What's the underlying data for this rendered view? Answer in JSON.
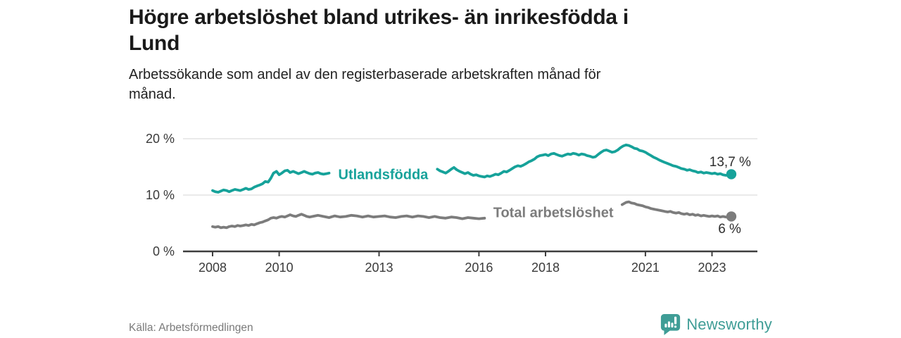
{
  "header": {
    "title_lines": [
      "Högre arbetslöshet bland utrikes- än inrikesfödda i",
      "Lund"
    ],
    "subtitle_lines": [
      "Arbetssökande som andel av den registerbaserade arbetskraften månad för",
      "månad."
    ]
  },
  "footer": {
    "source": "Källa: Arbetsförmedlingen",
    "brand_name": "Newsworthy",
    "brand_color": "#3f9d96",
    "logo_icon": "bar-chart-speech-bubble-icon"
  },
  "chart_data": {
    "type": "line",
    "title": "Högre arbetslöshet bland utrikes- än inrikesfödda i Lund",
    "subtitle": "Arbetssökande som andel av den registerbaserade arbetskraften månad för månad.",
    "unit": "%",
    "grid": "horizontal-only",
    "grid_color": "#e3e3e3",
    "axis_color": "#3e3e3e",
    "x_range": [
      2007.1,
      2024.4
    ],
    "y_range": [
      0,
      21.5
    ],
    "x_tick_values": [
      2008,
      2010,
      2013,
      2016,
      2018,
      2021,
      2023
    ],
    "x_tick_labels": [
      "2008",
      "2010",
      "2013",
      "2016",
      "2018",
      "2021",
      "2023"
    ],
    "y_ticks": [
      {
        "value": 0,
        "label": "0 %"
      },
      {
        "value": 10,
        "label": "10 %"
      },
      {
        "value": 20,
        "label": "20 %"
      }
    ],
    "series": [
      {
        "name": "Utlandsfödda",
        "color": "#16a29a",
        "end_value": 13.7,
        "end_label": "13,7 %",
        "segments": [
          [
            [
              2008,
              10.8
            ],
            [
              2008.08,
              10.6
            ],
            [
              2008.17,
              10.5
            ],
            [
              2008.25,
              10.7
            ],
            [
              2008.33,
              10.9
            ],
            [
              2008.42,
              10.8
            ],
            [
              2008.5,
              10.6
            ],
            [
              2008.58,
              10.8
            ],
            [
              2008.67,
              11.0
            ],
            [
              2008.75,
              10.9
            ],
            [
              2008.83,
              10.8
            ],
            [
              2008.92,
              11.0
            ],
            [
              2009,
              11.2
            ],
            [
              2009.08,
              11.0
            ],
            [
              2009.17,
              11.1
            ],
            [
              2009.25,
              11.4
            ],
            [
              2009.33,
              11.6
            ],
            [
              2009.42,
              11.8
            ],
            [
              2009.5,
              12.0
            ],
            [
              2009.58,
              12.4
            ],
            [
              2009.67,
              12.3
            ],
            [
              2009.75,
              13.0
            ],
            [
              2009.83,
              13.9
            ],
            [
              2009.92,
              14.2
            ],
            [
              2010,
              13.6
            ],
            [
              2010.08,
              13.9
            ],
            [
              2010.17,
              14.3
            ],
            [
              2010.25,
              14.4
            ],
            [
              2010.33,
              14.0
            ],
            [
              2010.42,
              14.2
            ],
            [
              2010.5,
              14.0
            ],
            [
              2010.58,
              13.8
            ],
            [
              2010.67,
              14.0
            ],
            [
              2010.75,
              14.2
            ],
            [
              2010.83,
              14.0
            ],
            [
              2010.92,
              13.8
            ],
            [
              2011,
              13.7
            ],
            [
              2011.08,
              13.9
            ],
            [
              2011.17,
              14.0
            ],
            [
              2011.25,
              13.8
            ],
            [
              2011.33,
              13.7
            ],
            [
              2011.42,
              13.8
            ],
            [
              2011.5,
              13.9
            ]
          ],
          [
            [
              2014.75,
              14.6
            ],
            [
              2014.83,
              14.3
            ],
            [
              2014.92,
              14.1
            ],
            [
              2015,
              13.9
            ],
            [
              2015.08,
              14.2
            ],
            [
              2015.17,
              14.6
            ],
            [
              2015.25,
              14.9
            ],
            [
              2015.33,
              14.5
            ],
            [
              2015.42,
              14.2
            ],
            [
              2015.5,
              14.0
            ],
            [
              2015.58,
              13.8
            ],
            [
              2015.67,
              14.0
            ],
            [
              2015.75,
              13.7
            ],
            [
              2015.83,
              13.5
            ],
            [
              2015.92,
              13.6
            ],
            [
              2016,
              13.4
            ],
            [
              2016.08,
              13.3
            ],
            [
              2016.17,
              13.2
            ],
            [
              2016.25,
              13.4
            ],
            [
              2016.33,
              13.3
            ],
            [
              2016.42,
              13.5
            ],
            [
              2016.5,
              13.7
            ],
            [
              2016.58,
              13.6
            ],
            [
              2016.67,
              13.9
            ],
            [
              2016.75,
              14.2
            ],
            [
              2016.83,
              14.1
            ],
            [
              2016.92,
              14.4
            ],
            [
              2017,
              14.7
            ],
            [
              2017.08,
              15.0
            ],
            [
              2017.17,
              15.2
            ],
            [
              2017.25,
              15.1
            ],
            [
              2017.33,
              15.3
            ],
            [
              2017.42,
              15.6
            ],
            [
              2017.5,
              15.9
            ],
            [
              2017.58,
              16.1
            ],
            [
              2017.67,
              16.4
            ],
            [
              2017.75,
              16.8
            ],
            [
              2017.83,
              17.0
            ],
            [
              2017.92,
              17.1
            ],
            [
              2018,
              17.2
            ],
            [
              2018.08,
              17.0
            ],
            [
              2018.17,
              17.3
            ],
            [
              2018.25,
              17.4
            ],
            [
              2018.33,
              17.2
            ],
            [
              2018.42,
              17.0
            ],
            [
              2018.5,
              16.9
            ],
            [
              2018.58,
              17.1
            ],
            [
              2018.67,
              17.3
            ],
            [
              2018.75,
              17.2
            ],
            [
              2018.83,
              17.4
            ],
            [
              2018.92,
              17.3
            ],
            [
              2019,
              17.1
            ],
            [
              2019.08,
              17.3
            ],
            [
              2019.17,
              17.2
            ],
            [
              2019.25,
              17.0
            ],
            [
              2019.33,
              16.9
            ],
            [
              2019.42,
              16.7
            ],
            [
              2019.5,
              16.8
            ],
            [
              2019.58,
              17.2
            ],
            [
              2019.67,
              17.6
            ],
            [
              2019.75,
              17.9
            ],
            [
              2019.83,
              18.0
            ],
            [
              2019.92,
              17.8
            ],
            [
              2020,
              17.6
            ],
            [
              2020.08,
              17.7
            ],
            [
              2020.17,
              18.0
            ],
            [
              2020.25,
              18.4
            ],
            [
              2020.33,
              18.7
            ],
            [
              2020.42,
              18.9
            ],
            [
              2020.5,
              18.8
            ],
            [
              2020.58,
              18.6
            ],
            [
              2020.67,
              18.3
            ],
            [
              2020.75,
              18.2
            ],
            [
              2020.83,
              17.9
            ],
            [
              2020.92,
              17.8
            ],
            [
              2021,
              17.6
            ],
            [
              2021.08,
              17.3
            ],
            [
              2021.17,
              17.0
            ],
            [
              2021.25,
              16.7
            ],
            [
              2021.33,
              16.5
            ],
            [
              2021.42,
              16.2
            ],
            [
              2021.5,
              16.0
            ],
            [
              2021.58,
              15.8
            ],
            [
              2021.67,
              15.6
            ],
            [
              2021.75,
              15.4
            ],
            [
              2021.83,
              15.2
            ],
            [
              2021.92,
              15.1
            ],
            [
              2022,
              14.9
            ],
            [
              2022.08,
              14.7
            ],
            [
              2022.17,
              14.6
            ],
            [
              2022.25,
              14.4
            ],
            [
              2022.33,
              14.5
            ],
            [
              2022.42,
              14.3
            ],
            [
              2022.5,
              14.2
            ],
            [
              2022.58,
              14.0
            ],
            [
              2022.67,
              14.1
            ],
            [
              2022.75,
              13.9
            ],
            [
              2022.83,
              14.0
            ],
            [
              2022.92,
              13.9
            ],
            [
              2023,
              13.8
            ],
            [
              2023.08,
              13.9
            ],
            [
              2023.17,
              13.7
            ],
            [
              2023.25,
              13.8
            ],
            [
              2023.33,
              13.6
            ],
            [
              2023.42,
              13.5
            ],
            [
              2023.5,
              13.6
            ],
            [
              2023.58,
              13.7
            ]
          ]
        ]
      },
      {
        "name": "Total arbetslöshet",
        "color": "#7c7c7c",
        "end_value": 6.2,
        "end_label": "6 %",
        "segments": [
          [
            [
              2008,
              4.4
            ],
            [
              2008.08,
              4.3
            ],
            [
              2008.17,
              4.4
            ],
            [
              2008.25,
              4.2
            ],
            [
              2008.33,
              4.3
            ],
            [
              2008.42,
              4.2
            ],
            [
              2008.5,
              4.4
            ],
            [
              2008.58,
              4.5
            ],
            [
              2008.67,
              4.4
            ],
            [
              2008.75,
              4.6
            ],
            [
              2008.83,
              4.5
            ],
            [
              2008.92,
              4.6
            ],
            [
              2009,
              4.7
            ],
            [
              2009.08,
              4.6
            ],
            [
              2009.17,
              4.8
            ],
            [
              2009.25,
              4.7
            ],
            [
              2009.33,
              4.9
            ],
            [
              2009.42,
              5.1
            ],
            [
              2009.5,
              5.2
            ],
            [
              2009.58,
              5.4
            ],
            [
              2009.67,
              5.6
            ],
            [
              2009.75,
              5.9
            ],
            [
              2009.83,
              6.0
            ],
            [
              2009.92,
              5.9
            ],
            [
              2010,
              6.1
            ],
            [
              2010.08,
              6.2
            ],
            [
              2010.17,
              6.1
            ],
            [
              2010.25,
              6.3
            ],
            [
              2010.33,
              6.5
            ],
            [
              2010.42,
              6.3
            ],
            [
              2010.5,
              6.2
            ],
            [
              2010.58,
              6.4
            ],
            [
              2010.67,
              6.6
            ],
            [
              2010.75,
              6.4
            ],
            [
              2010.83,
              6.2
            ],
            [
              2010.92,
              6.1
            ],
            [
              2011,
              6.2
            ],
            [
              2011.17,
              6.4
            ],
            [
              2011.33,
              6.2
            ],
            [
              2011.5,
              6.0
            ],
            [
              2011.67,
              6.3
            ],
            [
              2011.83,
              6.1
            ],
            [
              2012,
              6.2
            ],
            [
              2012.17,
              6.4
            ],
            [
              2012.33,
              6.3
            ],
            [
              2012.5,
              6.1
            ],
            [
              2012.67,
              6.3
            ],
            [
              2012.83,
              6.1
            ],
            [
              2013,
              6.2
            ],
            [
              2013.17,
              6.3
            ],
            [
              2013.33,
              6.1
            ],
            [
              2013.5,
              6.0
            ],
            [
              2013.67,
              6.2
            ],
            [
              2013.83,
              6.3
            ],
            [
              2014,
              6.1
            ],
            [
              2014.17,
              6.3
            ],
            [
              2014.33,
              6.2
            ],
            [
              2014.5,
              6.0
            ],
            [
              2014.67,
              6.2
            ],
            [
              2014.83,
              6.0
            ],
            [
              2015,
              5.9
            ],
            [
              2015.17,
              6.1
            ],
            [
              2015.33,
              6.0
            ],
            [
              2015.5,
              5.8
            ],
            [
              2015.67,
              6.0
            ],
            [
              2015.83,
              5.9
            ],
            [
              2016,
              5.8
            ],
            [
              2016.17,
              5.9
            ]
          ],
          [
            [
              2020.3,
              8.3
            ],
            [
              2020.42,
              8.7
            ],
            [
              2020.5,
              8.8
            ],
            [
              2020.58,
              8.6
            ],
            [
              2020.67,
              8.5
            ],
            [
              2020.75,
              8.3
            ],
            [
              2020.83,
              8.2
            ],
            [
              2020.92,
              8.1
            ],
            [
              2021,
              7.9
            ],
            [
              2021.08,
              7.8
            ],
            [
              2021.17,
              7.6
            ],
            [
              2021.25,
              7.5
            ],
            [
              2021.33,
              7.4
            ],
            [
              2021.42,
              7.3
            ],
            [
              2021.5,
              7.2
            ],
            [
              2021.58,
              7.1
            ],
            [
              2021.67,
              7.0
            ],
            [
              2021.75,
              7.1
            ],
            [
              2021.83,
              6.9
            ],
            [
              2021.92,
              6.8
            ],
            [
              2022,
              6.9
            ],
            [
              2022.08,
              6.7
            ],
            [
              2022.17,
              6.6
            ],
            [
              2022.25,
              6.7
            ],
            [
              2022.33,
              6.5
            ],
            [
              2022.42,
              6.6
            ],
            [
              2022.5,
              6.4
            ],
            [
              2022.58,
              6.5
            ],
            [
              2022.67,
              6.3
            ],
            [
              2022.75,
              6.4
            ],
            [
              2022.83,
              6.3
            ],
            [
              2022.92,
              6.2
            ],
            [
              2023,
              6.3
            ],
            [
              2023.08,
              6.2
            ],
            [
              2023.17,
              6.3
            ],
            [
              2023.25,
              6.1
            ],
            [
              2023.33,
              6.2
            ],
            [
              2023.42,
              6.1
            ],
            [
              2023.5,
              6.1
            ],
            [
              2023.58,
              6.2
            ]
          ]
        ]
      }
    ],
    "source": "Källa: Arbetsförmedlingen",
    "legend_position": "inline-on-lines"
  }
}
